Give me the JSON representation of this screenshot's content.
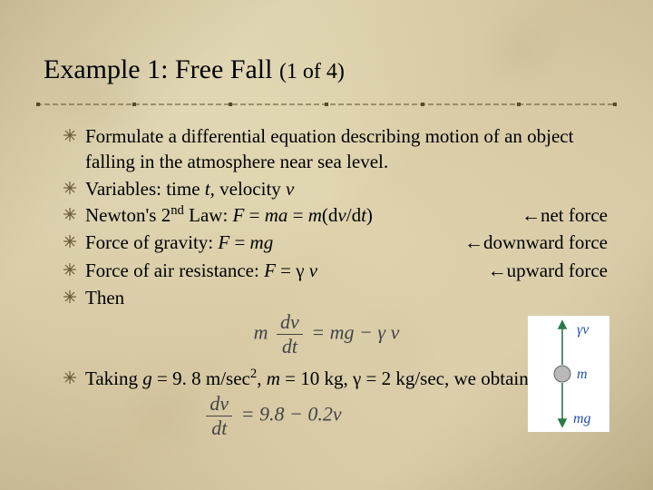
{
  "title": {
    "main": "Example 1:  Free Fall",
    "sub": "(1 of 4)",
    "fontsize_main": 30,
    "fontsize_sub": 24
  },
  "divider": {
    "color": "#5a4a28",
    "square_count": 7
  },
  "bullets": [
    {
      "html": "Formulate a differential equation describing motion of an object falling in the atmosphere near sea level."
    },
    {
      "html": "Variables: time <span class='itl'>t</span>, velocity <span class='itl'>v</span>"
    },
    {
      "lhs_html": "Newton's 2<sup>nd</sup> Law:  <span class='itl'>F</span> = <span class='itl'>ma</span> = <span class='itl'>m</span>(d<span class='itl'>v</span>/d<span class='itl'>t</span>)",
      "rhs_html": "<span class='arrow'>&#8592;</span>net force"
    },
    {
      "lhs_html": "Force of gravity: <span class='itl'>F</span> = <span class='itl'>mg</span>",
      "rhs_html": "<span class='arrow'>&#8592;</span>downward force"
    },
    {
      "lhs_html": "Force of air resistance:  <span class='itl'>F</span> = <span class='gamma'>&#947;</span> <span class='itl'>v</span>",
      "rhs_html": "<span class='arrow'>&#8592;</span>upward force"
    },
    {
      "html": "Then"
    }
  ],
  "equation1_html": "<span class='itl'>m</span> <span class='frac'><span class='num'>d<span class=\"itl\">v</span></span><span class='den'>d<span class=\"itl\">t</span></span></span> = <span class='itl'>mg</span> &#8722; <span class='gamma'>&#947;</span> <span class='itl'>v</span>",
  "bullet7_html": "Taking <span class='itl'>g</span> = 9. 8 m/sec<sup>2</sup>, <span class='itl'>m</span> = 10 kg, <span class='gamma'>&#947;</span>  = 2 kg/sec, we obtain",
  "equation2_html": "<span class='frac'><span class='num'>d<span class=\"itl\">v</span></span><span class='den'>d<span class=\"itl\">t</span></span></span> = 9.8 &#8722; 0.2<span class='itl'>v</span>",
  "diagram": {
    "up_label_html": "<span class='gamma'>&#947;</span><span class='itl'>v</span>",
    "mid_label_html": "<span class='itl'>m</span>",
    "down_label_html": "<span class='itl'>mg</span>",
    "arrow_color": "#2a7a4a",
    "ball_fill": "#b8b8b8",
    "ball_stroke": "#666",
    "label_color": "#2451a8",
    "bg": "#ffffff"
  },
  "colors": {
    "text": "#000000",
    "equation": "#444444",
    "bullet_icon": "#6a5a3a"
  }
}
